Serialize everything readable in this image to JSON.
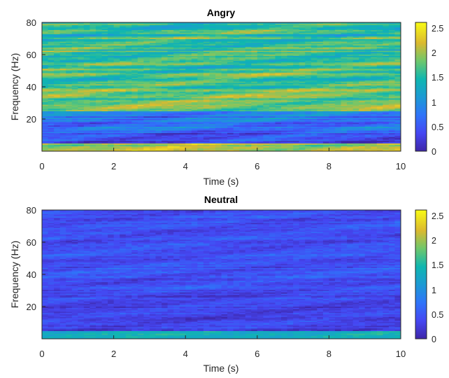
{
  "chart_data": [
    {
      "type": "heatmap",
      "title": "Angry",
      "xlabel": "Time (s)",
      "ylabel": "Frequency (Hz)",
      "xlim": [
        0,
        10
      ],
      "ylim": [
        0,
        80
      ],
      "xticks": [
        0,
        2,
        4,
        6,
        8,
        10
      ],
      "yticks": [
        20,
        40,
        60,
        80
      ],
      "colorbar": {
        "range": [
          0,
          2.6
        ],
        "ticks": [
          0,
          0.5,
          1,
          1.5,
          2,
          2.5
        ],
        "colormap": "parula"
      },
      "band_means": [
        {
          "freq_range": [
            0,
            5
          ],
          "mean": 2.1
        },
        {
          "freq_range": [
            5,
            12
          ],
          "mean": 0.4
        },
        {
          "freq_range": [
            12,
            25
          ],
          "mean": 0.7
        },
        {
          "freq_range": [
            25,
            50
          ],
          "mean": 1.7
        },
        {
          "freq_range": [
            50,
            80
          ],
          "mean": 1.6
        }
      ]
    },
    {
      "type": "heatmap",
      "title": "Neutral",
      "xlabel": "Time (s)",
      "ylabel": "Frequency (Hz)",
      "xlim": [
        0,
        10
      ],
      "ylim": [
        0,
        80
      ],
      "xticks": [
        0,
        2,
        4,
        6,
        8,
        10
      ],
      "yticks": [
        20,
        40,
        60,
        80
      ],
      "colorbar": {
        "range": [
          0,
          2.6
        ],
        "ticks": [
          0,
          0.5,
          1,
          1.5,
          2,
          2.5
        ],
        "colormap": "parula"
      },
      "band_means": [
        {
          "freq_range": [
            0,
            5
          ],
          "mean": 1.3
        },
        {
          "freq_range": [
            5,
            30
          ],
          "mean": 0.35
        },
        {
          "freq_range": [
            30,
            80
          ],
          "mean": 0.45
        }
      ]
    }
  ]
}
